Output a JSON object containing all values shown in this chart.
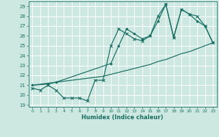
{
  "xlabel": "Humidex (Indice chaleur)",
  "bg_color": "#cce8e0",
  "grid_color": "#ffffff",
  "line_color": "#1a6e64",
  "xlim": [
    -0.5,
    23.5
  ],
  "ylim": [
    18.8,
    29.5
  ],
  "xticks": [
    0,
    1,
    2,
    3,
    4,
    5,
    6,
    7,
    8,
    9,
    10,
    11,
    12,
    13,
    14,
    15,
    16,
    17,
    18,
    19,
    20,
    21,
    22,
    23
  ],
  "yticks": [
    19,
    20,
    21,
    22,
    23,
    24,
    25,
    26,
    27,
    28,
    29
  ],
  "series1_x": [
    0,
    1,
    2,
    3,
    4,
    5,
    6,
    7,
    8,
    9,
    10,
    11,
    12,
    13,
    14,
    15,
    16,
    17,
    18,
    19,
    20,
    21,
    22,
    23
  ],
  "series1_y": [
    20.7,
    20.5,
    21.0,
    20.5,
    19.7,
    19.7,
    19.7,
    19.4,
    21.5,
    21.5,
    25.0,
    26.7,
    26.2,
    25.7,
    25.5,
    26.0,
    28.0,
    29.2,
    25.8,
    28.7,
    28.2,
    28.0,
    27.0,
    25.3
  ],
  "series2_x": [
    0,
    1,
    2,
    3,
    4,
    5,
    6,
    7,
    8,
    9,
    10,
    11,
    12,
    13,
    14,
    15,
    16,
    17,
    18,
    19,
    20,
    21,
    22,
    23
  ],
  "series2_y": [
    21.0,
    21.1,
    21.2,
    21.3,
    21.4,
    21.5,
    21.6,
    21.7,
    21.8,
    21.9,
    22.1,
    22.3,
    22.5,
    22.7,
    22.9,
    23.1,
    23.4,
    23.6,
    23.9,
    24.2,
    24.4,
    24.7,
    25.0,
    25.3
  ],
  "series3_x": [
    0,
    2,
    3,
    10,
    11,
    12,
    13,
    14,
    15,
    16,
    17,
    18,
    19,
    20,
    21,
    22,
    23
  ],
  "series3_y": [
    21.0,
    21.1,
    21.3,
    23.2,
    25.0,
    26.7,
    26.2,
    25.7,
    26.0,
    27.5,
    29.2,
    25.9,
    28.7,
    28.2,
    27.5,
    27.0,
    25.3
  ]
}
